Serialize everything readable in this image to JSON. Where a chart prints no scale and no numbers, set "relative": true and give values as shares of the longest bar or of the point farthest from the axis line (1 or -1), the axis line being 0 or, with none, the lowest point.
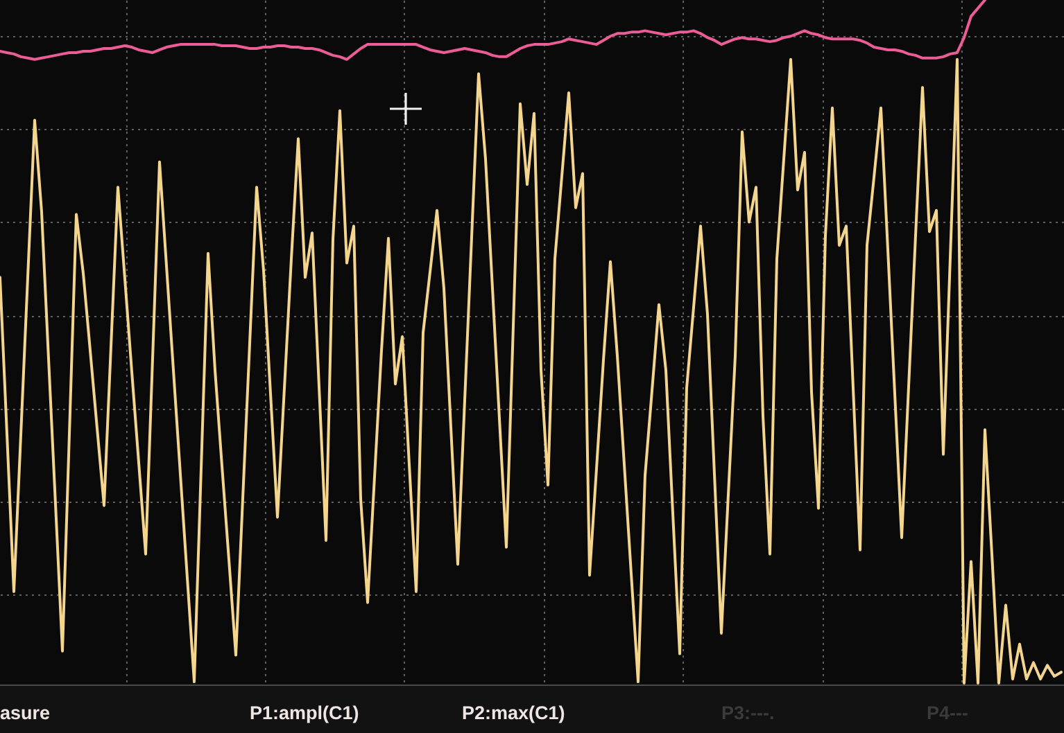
{
  "chart_data": {
    "type": "line",
    "relative": true,
    "grid": true,
    "categories": [
      null,
      null,
      null,
      null,
      null,
      null,
      null,
      null,
      null,
      null,
      null,
      null,
      null,
      null,
      null,
      null,
      null,
      null,
      null,
      null,
      null,
      null,
      null,
      null,
      null,
      null,
      null,
      null,
      null,
      null,
      null,
      null,
      null,
      null,
      null,
      null,
      null,
      null,
      null,
      null,
      null,
      null,
      null,
      null,
      null,
      null,
      null,
      null,
      null,
      null,
      null,
      null,
      null,
      null,
      null,
      null,
      null,
      null,
      null,
      null,
      null,
      null,
      null,
      null,
      null,
      null,
      null,
      null,
      null,
      null,
      null,
      null,
      null,
      null,
      null,
      null,
      null,
      null,
      null,
      null,
      null,
      null,
      null,
      null,
      null,
      null,
      null,
      null,
      null,
      null,
      null,
      null,
      null,
      null,
      null,
      null,
      null,
      null,
      null,
      null,
      null,
      null,
      null,
      null,
      null,
      null,
      null,
      null,
      null,
      null,
      null,
      null,
      null,
      null,
      null,
      null,
      null,
      null,
      null,
      null,
      null,
      null,
      null,
      null,
      null,
      null,
      null,
      null,
      null,
      null,
      null,
      null,
      null,
      null,
      null,
      null,
      null,
      null,
      null,
      null,
      null,
      null,
      null,
      null,
      null,
      null,
      null,
      null,
      null,
      null,
      null,
      null,
      null,
      null
    ],
    "series": [
      {
        "color": "#f4d58e",
        "values": [
          0.594,
          0.365,
          0.134,
          0.363,
          0.594,
          0.824,
          0.69,
          0.475,
          0.262,
          0.047,
          0.365,
          0.686,
          0.6,
          0.487,
          0.373,
          0.26,
          0.493,
          0.726,
          0.592,
          0.456,
          0.323,
          0.189,
          0.475,
          0.763,
          0.611,
          0.458,
          0.306,
          0.154,
          0.002,
          0.314,
          0.629,
          0.458,
          0.318,
          0.181,
          0.041,
          0.27,
          0.497,
          0.726,
          0.604,
          0.424,
          0.243,
          0.432,
          0.621,
          0.797,
          0.594,
          0.659,
          0.434,
          0.209,
          0.649,
          0.838,
          0.615,
          0.669,
          0.27,
          0.118,
          0.302,
          0.487,
          0.651,
          0.438,
          0.507,
          0.32,
          0.134,
          0.513,
          0.602,
          0.692,
          0.578,
          0.375,
          0.174,
          0.414,
          0.653,
          0.892,
          0.767,
          0.578,
          0.387,
          0.199,
          0.523,
          0.848,
          0.73,
          0.834,
          0.458,
          0.29,
          0.621,
          0.742,
          0.864,
          0.696,
          0.746,
          0.158,
          0.314,
          0.473,
          0.617,
          0.479,
          0.32,
          0.16,
          0.002,
          0.304,
          0.428,
          0.554,
          0.458,
          0.249,
          0.043,
          0.432,
          0.55,
          0.669,
          0.54,
          0.306,
          0.073,
          0.276,
          0.479,
          0.807,
          0.675,
          0.726,
          0.391,
          0.189,
          0.621,
          0.767,
          0.913,
          0.722,
          0.777,
          0.426,
          0.256,
          0.655,
          0.842,
          0.641,
          0.669,
          0.432,
          0.195,
          0.641,
          0.74,
          0.842,
          0.635,
          0.424,
          0.213,
          0.434,
          0.655,
          0.872,
          0.661,
          0.692,
          0.335,
          0.623,
          0.913,
          0,
          0.178,
          0,
          0.371,
          0.189,
          0,
          0.114,
          0.006,
          0.057,
          0.006,
          0.03,
          0.006,
          0.026,
          0.01,
          0.016
        ]
      },
      {
        "color": "#ec5c96",
        "values": [
          0.925,
          0.923,
          0.921,
          0.917,
          0.915,
          0.913,
          0.915,
          0.917,
          0.919,
          0.921,
          0.923,
          0.923,
          0.925,
          0.925,
          0.927,
          0.929,
          0.929,
          0.931,
          0.933,
          0.931,
          0.927,
          0.925,
          0.923,
          0.927,
          0.931,
          0.933,
          0.935,
          0.935,
          0.935,
          0.935,
          0.935,
          0.935,
          0.933,
          0.933,
          0.933,
          0.931,
          0.929,
          0.929,
          0.931,
          0.931,
          0.933,
          0.933,
          0.931,
          0.931,
          0.929,
          0.929,
          0.927,
          0.923,
          0.919,
          0.917,
          0.913,
          0.921,
          0.929,
          0.935,
          0.935,
          0.935,
          0.935,
          0.935,
          0.935,
          0.935,
          0.935,
          0.931,
          0.927,
          0.925,
          0.923,
          0.925,
          0.927,
          0.929,
          0.927,
          0.925,
          0.923,
          0.919,
          0.917,
          0.917,
          0.923,
          0.929,
          0.933,
          0.935,
          0.935,
          0.935,
          0.937,
          0.939,
          0.943,
          0.941,
          0.939,
          0.937,
          0.935,
          0.941,
          0.947,
          0.951,
          0.951,
          0.953,
          0.953,
          0.955,
          0.953,
          0.951,
          0.949,
          0.951,
          0.953,
          0.953,
          0.955,
          0.951,
          0.945,
          0.941,
          0.935,
          0.939,
          0.943,
          0.945,
          0.943,
          0.943,
          0.941,
          0.939,
          0.941,
          0.945,
          0.947,
          0.951,
          0.955,
          0.951,
          0.949,
          0.945,
          0.943,
          0.943,
          0.943,
          0.943,
          0.941,
          0.937,
          0.931,
          0.929,
          0.927,
          0.927,
          0.925,
          0.921,
          0.919,
          0.915,
          0.915,
          0.915,
          0.917,
          0.921,
          0.923,
          0.945,
          0.976,
          0.988,
          1,
          null,
          null,
          null,
          null,
          null,
          null,
          null,
          null,
          null,
          null,
          null
        ]
      }
    ],
    "annotations": [
      "asure",
      "P1:ampl(C1)",
      "P2:max(C1)",
      "P3:---.",
      "P4---"
    ]
  }
}
